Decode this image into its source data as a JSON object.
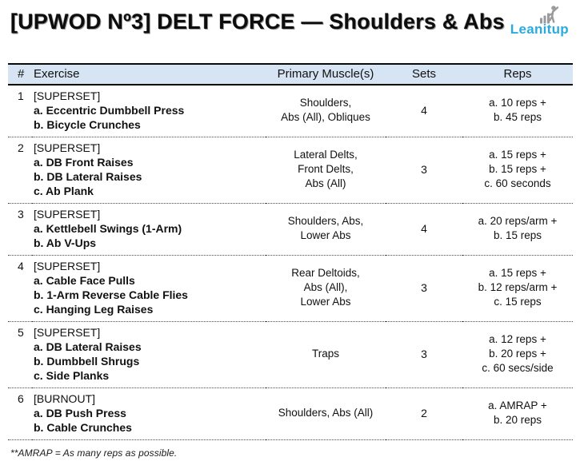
{
  "title": "[UPWOD Nº3] DELT FORCE — Shoulders & Abs",
  "logo": {
    "text": "Leanitup",
    "icon": "bar-chart-climber-icon"
  },
  "colors": {
    "header_bg": "#d6e4f3",
    "logo_blue": "#29abe2",
    "icon_gray": "#9b9b9b"
  },
  "table": {
    "headers": {
      "num": "#",
      "exercise": "Exercise",
      "muscles": "Primary Muscle(s)",
      "sets": "Sets",
      "reps": "Reps"
    },
    "rows": [
      {
        "num": "1",
        "exercise_tag": "[SUPERSET]",
        "exercise_items": [
          "a. Eccentric Dumbbell Press",
          "b. Bicycle Crunches"
        ],
        "muscles": [
          "Shoulders,",
          "Abs (All), Obliques"
        ],
        "sets": "4",
        "reps": [
          "a. 10 reps +",
          "b. 45 reps"
        ]
      },
      {
        "num": "2",
        "exercise_tag": "[SUPERSET]",
        "exercise_items": [
          "a. DB Front Raises",
          "b. DB Lateral Raises",
          "c. Ab Plank"
        ],
        "muscles": [
          "Lateral Delts,",
          "Front Delts,",
          "Abs (All)"
        ],
        "sets": "3",
        "reps": [
          "a. 15 reps +",
          "b. 15 reps +",
          "c. 60 seconds"
        ]
      },
      {
        "num": "3",
        "exercise_tag": "[SUPERSET]",
        "exercise_items": [
          "a. Kettlebell Swings (1-Arm)",
          "b. Ab V-Ups"
        ],
        "muscles": [
          "Shoulders, Abs,",
          "Lower Abs"
        ],
        "sets": "4",
        "reps": [
          "a. 20 reps/arm +",
          "b. 15 reps"
        ]
      },
      {
        "num": "4",
        "exercise_tag": "[SUPERSET]",
        "exercise_items": [
          "a. Cable Face Pulls",
          "b. 1-Arm Reverse Cable Flies",
          "c. Hanging Leg Raises"
        ],
        "muscles": [
          "Rear Deltoids,",
          "Abs (All),",
          "Lower Abs"
        ],
        "sets": "3",
        "reps": [
          "a. 15 reps +",
          "b. 12 reps/arm +",
          "c. 15 reps"
        ]
      },
      {
        "num": "5",
        "exercise_tag": "[SUPERSET]",
        "exercise_items": [
          "a. DB Lateral Raises",
          "b. Dumbbell Shrugs",
          "c. Side Planks"
        ],
        "muscles": [
          "Traps"
        ],
        "sets": "3",
        "reps": [
          "a. 12 reps +",
          "b. 20 reps +",
          "c. 60 secs/side"
        ]
      },
      {
        "num": "6",
        "exercise_tag": "[BURNOUT]",
        "exercise_items": [
          "a. DB Push Press",
          "b. Cable Crunches"
        ],
        "muscles": [
          "Shoulders, Abs (All)"
        ],
        "sets": "2",
        "reps": [
          "a. AMRAP +",
          "b. 20 reps"
        ]
      }
    ]
  },
  "footnote": "**AMRAP = As many reps as possible."
}
